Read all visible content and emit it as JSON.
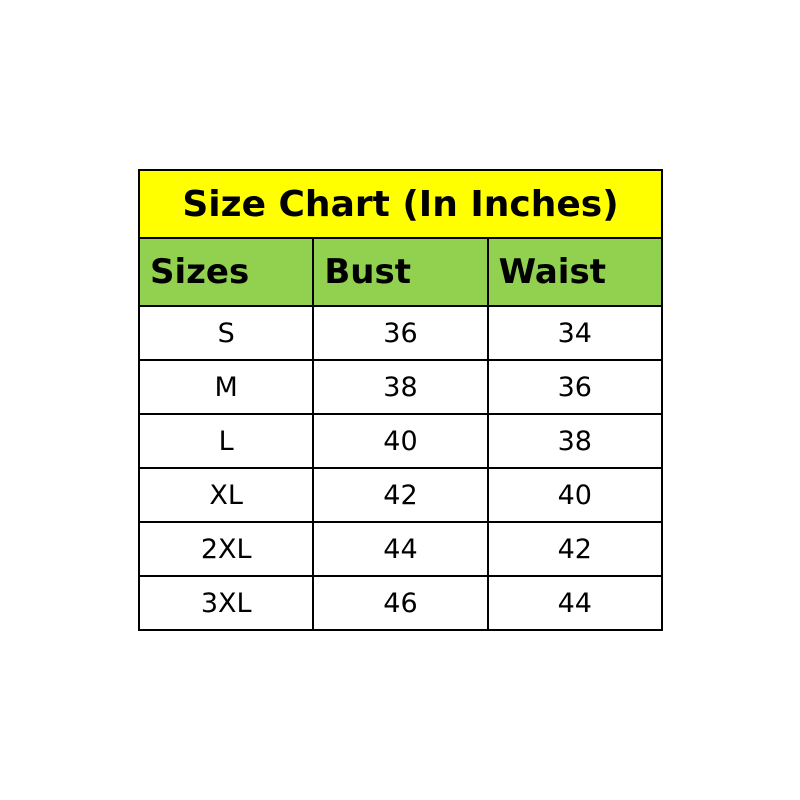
{
  "title": "Size Chart (In Inches)",
  "colors": {
    "title_bg": "#FFFF00",
    "header_bg": "#92D050",
    "border": "#000000"
  },
  "headers": [
    "Sizes",
    "Bust",
    "Waist"
  ],
  "rows": [
    [
      "S",
      "36",
      "34"
    ],
    [
      "M",
      "38",
      "36"
    ],
    [
      "L",
      "40",
      "38"
    ],
    [
      "XL",
      "42",
      "40"
    ],
    [
      "2XL",
      "44",
      "42"
    ],
    [
      "3XL",
      "46",
      "44"
    ]
  ]
}
